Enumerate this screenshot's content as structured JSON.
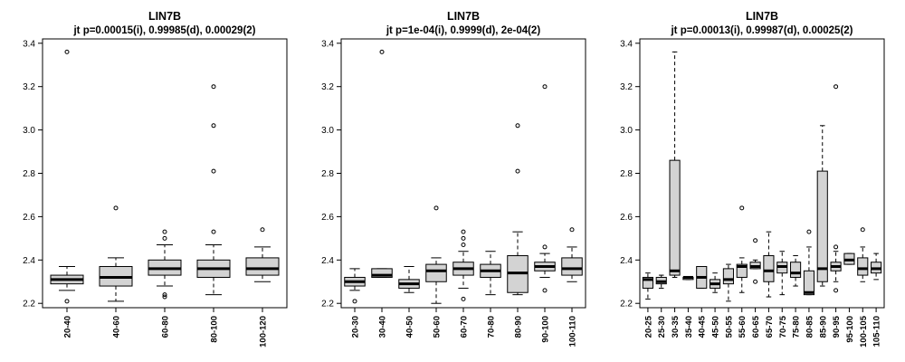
{
  "chart_data": [
    {
      "type": "boxplot",
      "title": "LIN7B",
      "subtitle": "jt p=0.00015(i), 0.99985(d), 0.00029(2)",
      "ylim": [
        2.18,
        3.42
      ],
      "yticks": [
        "2.2",
        "2.4",
        "2.6",
        "2.8",
        "3.0",
        "3.2",
        "3.4"
      ],
      "box_fill": "#d3d3d3",
      "categories": [
        "20-40",
        "40-60",
        "60-80",
        "80-100",
        "100-120"
      ],
      "boxes": [
        {
          "whisker_low": 2.26,
          "q1": 2.29,
          "median": 2.31,
          "q3": 2.33,
          "whisker_high": 2.37,
          "outliers": [
            2.21,
            3.36
          ]
        },
        {
          "whisker_low": 2.21,
          "q1": 2.28,
          "median": 2.32,
          "q3": 2.37,
          "whisker_high": 2.41,
          "outliers": [
            2.64
          ]
        },
        {
          "whisker_low": 2.28,
          "q1": 2.33,
          "median": 2.36,
          "q3": 2.4,
          "whisker_high": 2.47,
          "outliers": [
            2.23,
            2.24,
            2.5,
            2.53
          ]
        },
        {
          "whisker_low": 2.24,
          "q1": 2.32,
          "median": 2.36,
          "q3": 2.4,
          "whisker_high": 2.47,
          "outliers": [
            2.53,
            2.81,
            3.02,
            3.2
          ]
        },
        {
          "whisker_low": 2.3,
          "q1": 2.33,
          "median": 2.36,
          "q3": 2.41,
          "whisker_high": 2.46,
          "outliers": [
            2.54
          ]
        }
      ]
    },
    {
      "type": "boxplot",
      "title": "LIN7B",
      "subtitle": "jt p=1e-04(i), 0.9999(d), 2e-04(2)",
      "ylim": [
        2.18,
        3.42
      ],
      "yticks": [
        "2.2",
        "2.4",
        "2.6",
        "2.8",
        "3.0",
        "3.2",
        "3.4"
      ],
      "box_fill": "#d3d3d3",
      "categories": [
        "20-30",
        "30-40",
        "40-50",
        "50-60",
        "60-70",
        "70-80",
        "80-90",
        "90-100",
        "100-110"
      ],
      "boxes": [
        {
          "whisker_low": 2.26,
          "q1": 2.28,
          "median": 2.3,
          "q3": 2.32,
          "whisker_high": 2.36,
          "outliers": [
            2.21
          ]
        },
        {
          "whisker_low": 2.32,
          "q1": 2.32,
          "median": 2.33,
          "q3": 2.36,
          "whisker_high": 2.36,
          "outliers": [
            3.36
          ]
        },
        {
          "whisker_low": 2.25,
          "q1": 2.27,
          "median": 2.29,
          "q3": 2.31,
          "whisker_high": 2.37,
          "outliers": []
        },
        {
          "whisker_low": 2.2,
          "q1": 2.3,
          "median": 2.35,
          "q3": 2.38,
          "whisker_high": 2.41,
          "outliers": [
            2.64
          ]
        },
        {
          "whisker_low": 2.27,
          "q1": 2.33,
          "median": 2.36,
          "q3": 2.39,
          "whisker_high": 2.44,
          "outliers": [
            2.22,
            2.47,
            2.5,
            2.53
          ]
        },
        {
          "whisker_low": 2.24,
          "q1": 2.32,
          "median": 2.35,
          "q3": 2.38,
          "whisker_high": 2.44,
          "outliers": []
        },
        {
          "whisker_low": 2.24,
          "q1": 2.25,
          "median": 2.34,
          "q3": 2.42,
          "whisker_high": 2.53,
          "outliers": [
            2.81,
            3.02
          ]
        },
        {
          "whisker_low": 2.32,
          "q1": 2.35,
          "median": 2.37,
          "q3": 2.39,
          "whisker_high": 2.43,
          "outliers": [
            2.26,
            2.46,
            3.2
          ]
        },
        {
          "whisker_low": 2.3,
          "q1": 2.33,
          "median": 2.36,
          "q3": 2.41,
          "whisker_high": 2.46,
          "outliers": [
            2.54
          ]
        }
      ]
    },
    {
      "type": "boxplot",
      "title": "LIN7B",
      "subtitle": "jt p=0.00013(i), 0.99987(d), 0.00025(2)",
      "ylim": [
        2.18,
        3.42
      ],
      "yticks": [
        "2.2",
        "2.4",
        "2.6",
        "2.8",
        "3.0",
        "3.2",
        "3.4"
      ],
      "box_fill": "#d3d3d3",
      "categories": [
        "20-25",
        "25-30",
        "30-35",
        "35-40",
        "40-45",
        "45-50",
        "50-55",
        "55-60",
        "60-65",
        "65-70",
        "70-75",
        "75-80",
        "80-85",
        "85-90",
        "90-95",
        "95-100",
        "100-105",
        "105-110"
      ],
      "boxes": [
        {
          "whisker_low": 2.22,
          "q1": 2.27,
          "median": 2.31,
          "q3": 2.32,
          "whisker_high": 2.34,
          "outliers": []
        },
        {
          "whisker_low": 2.27,
          "q1": 2.29,
          "median": 2.3,
          "q3": 2.32,
          "whisker_high": 2.33,
          "outliers": []
        },
        {
          "whisker_low": 2.32,
          "q1": 2.33,
          "median": 2.35,
          "q3": 2.86,
          "whisker_high": 3.36,
          "outliers": []
        },
        {
          "whisker_low": 2.31,
          "q1": 2.31,
          "median": 2.32,
          "q3": 2.32,
          "whisker_high": 2.32,
          "outliers": []
        },
        {
          "whisker_low": 2.27,
          "q1": 2.27,
          "median": 2.32,
          "q3": 2.37,
          "whisker_high": 2.37,
          "outliers": []
        },
        {
          "whisker_low": 2.25,
          "q1": 2.27,
          "median": 2.29,
          "q3": 2.31,
          "whisker_high": 2.34,
          "outliers": []
        },
        {
          "whisker_low": 2.21,
          "q1": 2.29,
          "median": 2.31,
          "q3": 2.36,
          "whisker_high": 2.38,
          "outliers": []
        },
        {
          "whisker_low": 2.25,
          "q1": 2.32,
          "median": 2.37,
          "q3": 2.38,
          "whisker_high": 2.41,
          "outliers": [
            2.64
          ]
        },
        {
          "whisker_low": 2.36,
          "q1": 2.36,
          "median": 2.37,
          "q3": 2.39,
          "whisker_high": 2.4,
          "outliers": [
            2.3,
            2.49
          ]
        },
        {
          "whisker_low": 2.23,
          "q1": 2.3,
          "median": 2.35,
          "q3": 2.42,
          "whisker_high": 2.53,
          "outliers": []
        },
        {
          "whisker_low": 2.24,
          "q1": 2.34,
          "median": 2.37,
          "q3": 2.39,
          "whisker_high": 2.44,
          "outliers": []
        },
        {
          "whisker_low": 2.28,
          "q1": 2.32,
          "median": 2.34,
          "q3": 2.39,
          "whisker_high": 2.42,
          "outliers": []
        },
        {
          "whisker_low": 2.24,
          "q1": 2.24,
          "median": 2.25,
          "q3": 2.35,
          "whisker_high": 2.46,
          "outliers": [
            2.53
          ]
        },
        {
          "whisker_low": 2.28,
          "q1": 2.3,
          "median": 2.36,
          "q3": 2.81,
          "whisker_high": 3.02,
          "outliers": []
        },
        {
          "whisker_low": 2.3,
          "q1": 2.35,
          "median": 2.37,
          "q3": 2.39,
          "whisker_high": 2.44,
          "outliers": [
            2.26,
            2.46,
            3.2
          ]
        },
        {
          "whisker_low": 2.38,
          "q1": 2.38,
          "median": 2.4,
          "q3": 2.43,
          "whisker_high": 2.43,
          "outliers": []
        },
        {
          "whisker_low": 2.3,
          "q1": 2.33,
          "median": 2.36,
          "q3": 2.41,
          "whisker_high": 2.46,
          "outliers": [
            2.54
          ]
        },
        {
          "whisker_low": 2.31,
          "q1": 2.34,
          "median": 2.36,
          "q3": 2.39,
          "whisker_high": 2.43,
          "outliers": []
        }
      ]
    }
  ]
}
